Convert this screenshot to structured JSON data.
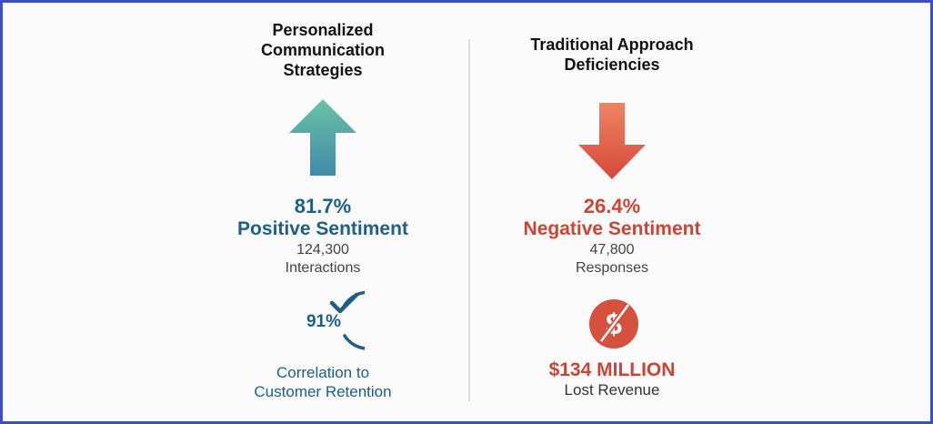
{
  "left": {
    "title_lines": [
      "Personalized",
      "Communication",
      "Strategies"
    ],
    "arrow_icon": "arrow-up-icon",
    "percent": "81.7%",
    "sentiment_label": "Positive Sentiment",
    "count": "124,300",
    "count_label": "Interactions",
    "badge_icon": "circle-check-icon",
    "badge_value": "91%",
    "footer_lines": [
      "Correlation to",
      "Customer Retention"
    ],
    "color": "#1d5f85"
  },
  "right": {
    "title_lines": [
      "Traditional Approach",
      "Deficiencies"
    ],
    "arrow_icon": "arrow-down-icon",
    "percent": "26.4%",
    "sentiment_label": "Negative Sentiment",
    "count": "47,800",
    "count_label": "Responses",
    "badge_icon": "no-dollar-icon",
    "amount": "$134 MILLION",
    "amount_label": "Lost Revenue",
    "color": "#cc4434"
  },
  "frame_color": "#3b4fc4"
}
